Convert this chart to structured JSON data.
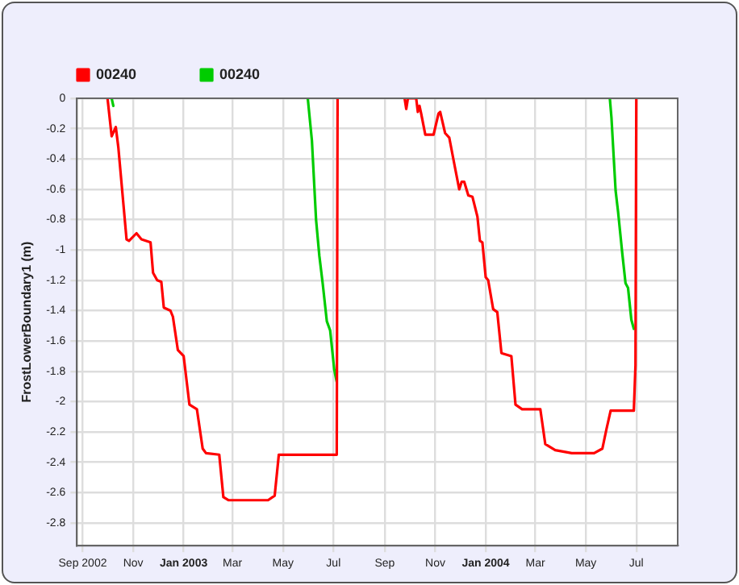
{
  "chart_data": {
    "type": "line",
    "ylabel": "FrostLowerBoundary1 (m)",
    "legend": "top left",
    "grid": true,
    "marker": "none",
    "line_style": "solid",
    "xlim": [
      "2002-08-25",
      "2004-08-20"
    ],
    "xticks": [
      {
        "value": "2002-09-01",
        "label": "Sep 2002"
      },
      {
        "value": "2002-11-01",
        "label": "Nov"
      },
      {
        "value": "2003-01-01",
        "label": "Jan 2003"
      },
      {
        "value": "2003-03-01",
        "label": "Mar"
      },
      {
        "value": "2003-05-01",
        "label": "May"
      },
      {
        "value": "2003-07-01",
        "label": "Jul"
      },
      {
        "value": "2003-09-01",
        "label": "Sep"
      },
      {
        "value": "2003-11-01",
        "label": "Nov"
      },
      {
        "value": "2004-01-01",
        "label": "Jan 2004"
      },
      {
        "value": "2004-03-01",
        "label": "Mar"
      },
      {
        "value": "2004-05-01",
        "label": "May"
      },
      {
        "value": "2004-07-01",
        "label": "Jul"
      }
    ],
    "ylim": [
      -2.95,
      0
    ],
    "yticks": [
      0,
      -0.2,
      -0.4,
      -0.6,
      -0.8,
      -1,
      -1.2,
      -1.4,
      -1.6,
      -1.8,
      -2,
      -2.2,
      -2.4,
      -2.6,
      -2.8
    ],
    "series": [
      {
        "name": "00240",
        "color": "#ff0000",
        "x": [
          "2002-10-01",
          "2002-10-06",
          "2002-10-11",
          "2002-10-14",
          "2002-10-24",
          "2002-10-27",
          "2002-11-05",
          "2002-11-11",
          "2002-11-22",
          "2002-11-25",
          "2002-11-30",
          "2002-12-05",
          "2002-12-08",
          "2002-12-16",
          "2002-12-19",
          "2002-12-25",
          "2003-01-01",
          "2003-01-08",
          "2003-01-17",
          "2003-01-24",
          "2003-01-28",
          "2003-02-13",
          "2003-02-18",
          "2003-02-24",
          "2003-04-13",
          "2003-04-21",
          "2003-04-26",
          "2003-07-05",
          "2003-07-06",
          "2003-08-15",
          "2003-09-25",
          "2003-09-27",
          "2003-09-29",
          "2003-10-09",
          "2003-10-11",
          "2003-10-13",
          "2003-10-15",
          "2003-10-20",
          "2003-10-30",
          "2003-11-05",
          "2003-11-07",
          "2003-11-13",
          "2003-11-18",
          "2003-11-25",
          "2003-11-30",
          "2003-12-03",
          "2003-12-06",
          "2003-12-11",
          "2003-12-16",
          "2003-12-22",
          "2003-12-25",
          "2003-12-28",
          "2004-01-01",
          "2004-01-04",
          "2004-01-10",
          "2004-01-15",
          "2004-01-20",
          "2004-02-01",
          "2004-02-06",
          "2004-02-14",
          "2004-03-07",
          "2004-03-13",
          "2004-03-25",
          "2004-04-14",
          "2004-05-11",
          "2004-05-21",
          "2004-05-26",
          "2004-05-31",
          "2004-06-28",
          "2004-06-30",
          "2004-07-01"
        ],
        "values": [
          0,
          -0.25,
          -0.19,
          -0.32,
          -0.93,
          -0.94,
          -0.89,
          -0.93,
          -0.95,
          -1.15,
          -1.2,
          -1.21,
          -1.38,
          -1.4,
          -1.44,
          -1.66,
          -1.7,
          -2.02,
          -2.05,
          -2.31,
          -2.34,
          -2.35,
          -2.63,
          -2.65,
          -2.65,
          -2.62,
          -2.35,
          -2.35,
          0,
          null,
          0,
          -0.07,
          0,
          0,
          -0.09,
          -0.05,
          -0.1,
          -0.24,
          -0.24,
          -0.1,
          -0.09,
          -0.23,
          -0.26,
          -0.46,
          -0.6,
          -0.55,
          -0.55,
          -0.64,
          -0.65,
          -0.78,
          -0.94,
          -0.95,
          -1.18,
          -1.2,
          -1.39,
          -1.41,
          -1.68,
          -1.7,
          -2.02,
          -2.05,
          -2.05,
          -2.28,
          -2.32,
          -2.34,
          -2.34,
          -2.31,
          -2.18,
          -2.06,
          -2.06,
          -1.76,
          0
        ]
      },
      {
        "name": "00240",
        "color": "#00cc00",
        "x": [
          "2002-10-06",
          "2002-10-08",
          "2003-01-01",
          "2003-05-31",
          "2003-06-05",
          "2003-06-10",
          "2003-06-14",
          "2003-06-18",
          "2003-06-23",
          "2003-06-27",
          "2003-07-02",
          "2003-07-05",
          "2004-01-01",
          "2004-05-30",
          "2004-06-01",
          "2004-06-06",
          "2004-06-09",
          "2004-06-14",
          "2004-06-18",
          "2004-06-21",
          "2004-06-25",
          "2004-06-28"
        ],
        "values": [
          0,
          -0.05,
          null,
          0,
          -0.28,
          -0.8,
          -1.04,
          -1.22,
          -1.47,
          -1.53,
          -1.79,
          -1.87,
          null,
          0,
          -0.13,
          -0.61,
          -0.75,
          -1.02,
          -1.22,
          -1.25,
          -1.46,
          -1.52
        ]
      }
    ]
  }
}
